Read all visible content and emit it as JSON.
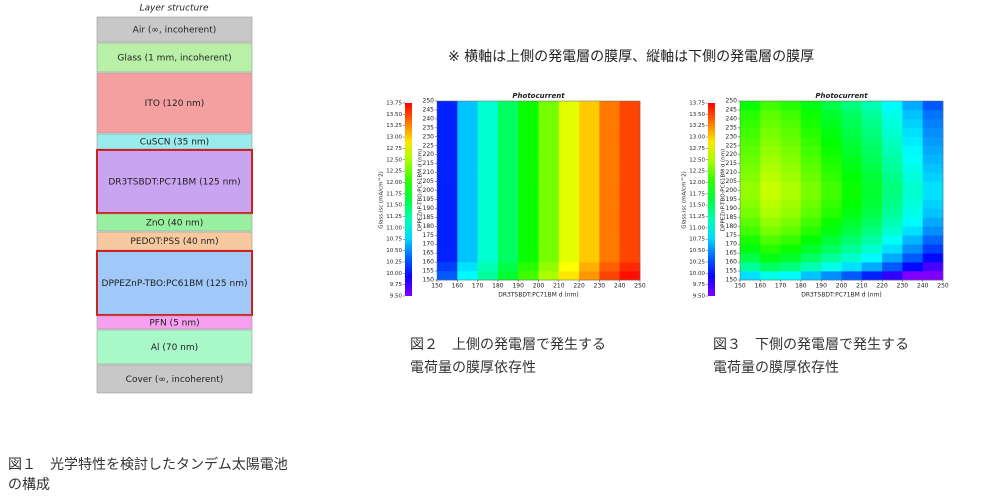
{
  "layer_structure": {
    "title": "Layer structure",
    "layers": [
      {
        "name": "Air (∞, incoherent)",
        "color": "#c8c8c8",
        "highlight": false
      },
      {
        "name": "Glass (1 mm, incoherent)",
        "color": "#b8f0a8",
        "highlight": false
      },
      {
        "name": "ITO (120 nm)",
        "color": "#f4a0a0",
        "highlight": false
      },
      {
        "name": "CuSCN (35 nm)",
        "color": "#98ecec",
        "highlight": false
      },
      {
        "name": "DR3TSBDT:PC71BM (125 nm)",
        "color": "#c9a4f0",
        "highlight": true
      },
      {
        "name": "ZnO (40 nm)",
        "color": "#98f0a0",
        "highlight": false
      },
      {
        "name": "PEDOT:PSS (40 nm)",
        "color": "#f8c8a0",
        "highlight": false
      },
      {
        "name": "DPPEZnP-TBO:PC61BM (125 nm)",
        "color": "#a0c8f8",
        "highlight": true
      },
      {
        "name": "PFN (5 nm)",
        "color": "#f8a0f0",
        "highlight": false
      },
      {
        "name": "Al (70 nm)",
        "color": "#a8f8c8",
        "highlight": false
      },
      {
        "name": "Cover (∞, incoherent)",
        "color": "#c8c8c8",
        "highlight": false
      }
    ],
    "caption": [
      "図１　光学特性を検討したタンデム太陽電池",
      "の構成"
    ]
  },
  "note": "※ 横軸は上側の発電層の膜厚、縦軸は下側の発電層の膜厚",
  "chart_data": [
    {
      "type": "heatmap",
      "title": "Photocurrent",
      "xlabel": "DR3TSBDT:PC71BM d (nm)",
      "ylabel": "DPPEZnP-TBO:PC61BM d (nm)",
      "colorbar_label": "Glass.isc (mA/cm^2)",
      "xlim": [
        150,
        250
      ],
      "ylim": [
        150,
        250
      ],
      "xticks": [
        150,
        160,
        170,
        180,
        190,
        200,
        210,
        220,
        230,
        240,
        250
      ],
      "yticks": [
        150,
        155,
        160,
        165,
        170,
        175,
        180,
        185,
        190,
        195,
        200,
        205,
        210,
        215,
        220,
        225,
        230,
        235,
        240,
        245,
        250
      ],
      "clim": [
        9.5,
        13.75
      ],
      "cticks": [
        {
          "value": 9.5,
          "label": "9.50"
        },
        9.75,
        {
          "value": 10,
          "label": "10.00"
        },
        10.25,
        {
          "value": 10.5,
          "label": "10.50"
        },
        10.75,
        {
          "value": 11,
          "label": "11.00"
        },
        11.25,
        {
          "value": 11.5,
          "label": "11.50"
        },
        11.75,
        {
          "value": 12,
          "label": "12.00"
        },
        12.25,
        {
          "value": 12.5,
          "label": "12.50"
        },
        12.75,
        {
          "value": 13,
          "label": "13.00"
        },
        13.25,
        {
          "value": 13.5,
          "label": "13.50"
        },
        13.75
      ],
      "values": [
        [
          10.3,
          10.9,
          11.3,
          11.7,
          12.1,
          12.5,
          12.9,
          13.2,
          13.5,
          13.7
        ],
        [
          10.2,
          10.8,
          11.2,
          11.6,
          12.0,
          12.4,
          12.8,
          13.1,
          13.4,
          13.6
        ],
        [
          10.1,
          10.7,
          11.1,
          11.5,
          11.9,
          12.3,
          12.7,
          13.0,
          13.3,
          13.5
        ],
        [
          10.1,
          10.7,
          11.1,
          11.5,
          11.9,
          12.3,
          12.7,
          13.0,
          13.3,
          13.5
        ],
        [
          10.1,
          10.7,
          11.1,
          11.5,
          11.9,
          12.3,
          12.7,
          13.0,
          13.3,
          13.5
        ],
        [
          10.1,
          10.7,
          11.1,
          11.5,
          11.9,
          12.3,
          12.7,
          13.0,
          13.3,
          13.5
        ],
        [
          10.1,
          10.7,
          11.1,
          11.5,
          11.9,
          12.3,
          12.7,
          13.0,
          13.3,
          13.5
        ],
        [
          10.1,
          10.7,
          11.1,
          11.5,
          11.9,
          12.3,
          12.7,
          13.0,
          13.3,
          13.5
        ],
        [
          10.1,
          10.7,
          11.1,
          11.5,
          11.9,
          12.3,
          12.7,
          13.0,
          13.3,
          13.5
        ],
        [
          10.1,
          10.7,
          11.1,
          11.5,
          11.9,
          12.3,
          12.7,
          13.0,
          13.3,
          13.5
        ],
        [
          10.1,
          10.7,
          11.1,
          11.5,
          11.9,
          12.3,
          12.7,
          13.0,
          13.3,
          13.5
        ],
        [
          10.1,
          10.7,
          11.1,
          11.5,
          11.9,
          12.3,
          12.7,
          13.0,
          13.3,
          13.5
        ],
        [
          10.1,
          10.7,
          11.1,
          11.5,
          11.9,
          12.3,
          12.7,
          13.0,
          13.3,
          13.5
        ],
        [
          10.1,
          10.7,
          11.1,
          11.5,
          11.9,
          12.3,
          12.7,
          13.0,
          13.3,
          13.5
        ],
        [
          10.1,
          10.7,
          11.1,
          11.5,
          11.9,
          12.3,
          12.7,
          13.0,
          13.3,
          13.5
        ],
        [
          10.1,
          10.7,
          11.1,
          11.5,
          11.9,
          12.3,
          12.7,
          13.0,
          13.3,
          13.5
        ],
        [
          10.1,
          10.7,
          11.1,
          11.5,
          11.9,
          12.3,
          12.7,
          13.0,
          13.3,
          13.5
        ],
        [
          10.1,
          10.7,
          11.1,
          11.5,
          11.9,
          12.3,
          12.7,
          13.0,
          13.3,
          13.5
        ],
        [
          10.1,
          10.7,
          11.1,
          11.5,
          11.9,
          12.3,
          12.7,
          13.0,
          13.3,
          13.5
        ],
        [
          10.1,
          10.7,
          11.1,
          11.5,
          11.9,
          12.3,
          12.7,
          13.0,
          13.3,
          13.5
        ]
      ],
      "caption": [
        "図２　上側の発電層で発生する",
        "電荷量の膜厚依存性"
      ]
    },
    {
      "type": "heatmap",
      "title": "Photocurrent",
      "xlabel": "DR3TSBDT:PC71BM d (nm)",
      "ylabel": "DPPEZnP-TBO:PC61BM d (nm)",
      "colorbar_label": "Glass.isc (mA/cm^2)",
      "xlim": [
        150,
        250
      ],
      "ylim": [
        150,
        250
      ],
      "xticks": [
        150,
        160,
        170,
        180,
        190,
        200,
        210,
        220,
        230,
        240,
        250
      ],
      "yticks": [
        150,
        155,
        160,
        165,
        170,
        175,
        180,
        185,
        190,
        195,
        200,
        205,
        210,
        215,
        220,
        225,
        230,
        235,
        240,
        245,
        250
      ],
      "clim": [
        9.5,
        13.75
      ],
      "cticks": [
        {
          "value": 9.5,
          "label": "9.50"
        },
        9.75,
        {
          "value": 10,
          "label": "10.00"
        },
        10.25,
        {
          "value": 10.5,
          "label": "10.50"
        },
        10.75,
        {
          "value": 11,
          "label": "11.00"
        },
        11.25,
        {
          "value": 11.5,
          "label": "11.50"
        },
        11.75,
        {
          "value": 12,
          "label": "12.00"
        },
        12.25,
        {
          "value": 12.5,
          "label": "12.50"
        },
        12.75,
        {
          "value": 13,
          "label": "13.00"
        },
        13.25,
        {
          "value": 13.5,
          "label": "13.50"
        },
        13.75
      ],
      "values": [
        [
          10.8,
          11.0,
          10.9,
          10.7,
          10.5,
          10.3,
          10.1,
          9.8,
          9.5,
          9.2
        ],
        [
          11.3,
          11.5,
          11.4,
          11.2,
          11.0,
          10.8,
          10.6,
          10.3,
          10.0,
          9.7
        ],
        [
          11.6,
          11.8,
          11.7,
          11.5,
          11.3,
          11.1,
          10.9,
          10.6,
          10.3,
          10.0
        ],
        [
          11.8,
          12.0,
          11.9,
          11.7,
          11.5,
          11.3,
          11.1,
          10.8,
          10.5,
          10.2
        ],
        [
          11.95,
          12.15,
          12.05,
          11.85,
          11.65,
          11.45,
          11.25,
          10.95,
          10.65,
          10.35
        ],
        [
          12.1,
          12.3,
          12.2,
          12.0,
          11.8,
          11.6,
          11.4,
          11.1,
          10.8,
          10.5
        ],
        [
          12.2,
          12.4,
          12.3,
          12.1,
          11.9,
          11.7,
          11.5,
          11.2,
          10.9,
          10.6
        ],
        [
          12.3,
          12.5,
          12.4,
          12.2,
          12.0,
          11.8,
          11.6,
          11.3,
          11.0,
          10.7
        ],
        [
          12.35,
          12.55,
          12.45,
          12.25,
          12.05,
          11.85,
          11.65,
          11.35,
          11.05,
          10.75
        ],
        [
          12.4,
          12.6,
          12.5,
          12.3,
          12.1,
          11.9,
          11.7,
          11.4,
          11.1,
          10.8
        ],
        [
          12.4,
          12.6,
          12.5,
          12.3,
          12.1,
          11.9,
          11.7,
          11.4,
          11.1,
          10.8
        ],
        [
          12.35,
          12.55,
          12.45,
          12.25,
          12.05,
          11.85,
          11.65,
          11.35,
          11.05,
          10.75
        ],
        [
          12.3,
          12.5,
          12.4,
          12.2,
          12.0,
          11.8,
          11.6,
          11.3,
          11.0,
          10.7
        ],
        [
          12.25,
          12.45,
          12.35,
          12.15,
          11.95,
          11.75,
          11.55,
          11.25,
          10.95,
          10.65
        ],
        [
          12.2,
          12.4,
          12.3,
          12.1,
          11.9,
          11.7,
          11.5,
          11.2,
          10.9,
          10.6
        ],
        [
          12.15,
          12.35,
          12.25,
          12.05,
          11.85,
          11.65,
          11.45,
          11.15,
          10.85,
          10.55
        ],
        [
          12.1,
          12.3,
          12.2,
          12.0,
          11.8,
          11.6,
          11.4,
          11.1,
          10.8,
          10.5
        ],
        [
          12.05,
          12.25,
          12.15,
          11.95,
          11.75,
          11.55,
          11.35,
          11.05,
          10.75,
          10.45
        ],
        [
          12.0,
          12.2,
          12.1,
          11.9,
          11.7,
          11.5,
          11.3,
          11.0,
          10.7,
          10.4
        ],
        [
          11.9,
          12.1,
          12.0,
          11.8,
          11.6,
          11.4,
          11.2,
          10.9,
          10.6,
          10.3
        ]
      ],
      "caption": [
        "図３　下側の発電層で発生する",
        "電荷量の膜厚依存性"
      ]
    }
  ]
}
